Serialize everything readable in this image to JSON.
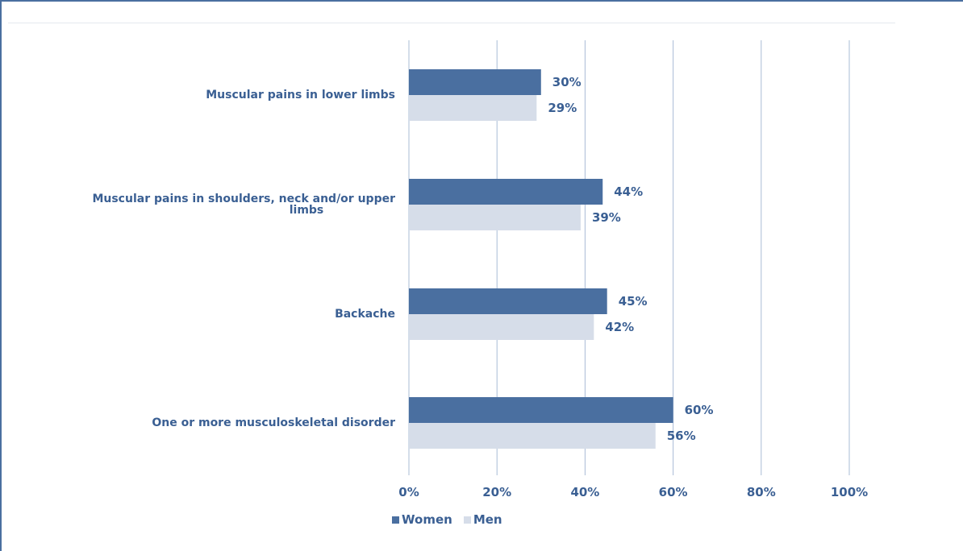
{
  "chart_data": {
    "type": "bar",
    "orientation": "horizontal",
    "categories": [
      "Muscular pains in lower limbs",
      "Muscular pains in shoulders, neck and/or upper limbs",
      "Backache",
      "One or more musculoskeletal disorder"
    ],
    "series": [
      {
        "name": "Women",
        "color": "#4a6fa0",
        "values": [
          30,
          44,
          45,
          60
        ],
        "labels": [
          "30%",
          "44%",
          "45%",
          "60%"
        ]
      },
      {
        "name": "Men",
        "color": "#d6dde9",
        "values": [
          29,
          39,
          42,
          56
        ],
        "labels": [
          "29%",
          "39%",
          "42%",
          "56%"
        ]
      }
    ],
    "xlim": [
      0,
      100
    ],
    "x_ticks": [
      0,
      20,
      40,
      60,
      80,
      100
    ],
    "x_tick_labels": [
      "0%",
      "20%",
      "40%",
      "60%",
      "80%",
      "100%"
    ],
    "grid": true,
    "legend_position": "bottom"
  }
}
